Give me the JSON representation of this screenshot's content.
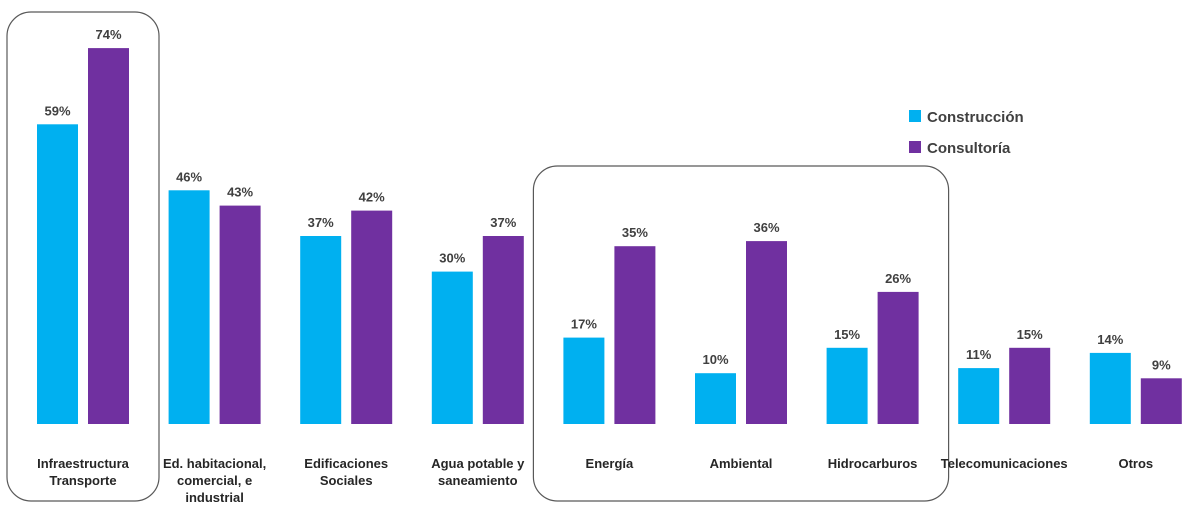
{
  "chart_data": {
    "type": "bar",
    "categories": [
      "Infraestructura Transporte",
      "Ed.  habitacional, comercial, e industrial",
      "Edificaciones Sociales",
      "Agua potable y saneamiento",
      "Energía",
      "Ambiental",
      "Hidrocarburos",
      "Telecomunicaciones",
      "Otros"
    ],
    "category_lines": [
      [
        "Infraestructura",
        "Transporte"
      ],
      [
        "Ed.  habitacional,",
        "comercial, e",
        "industrial"
      ],
      [
        "Edificaciones",
        "Sociales"
      ],
      [
        "Agua potable y",
        "saneamiento"
      ],
      [
        "Energía"
      ],
      [
        "Ambiental"
      ],
      [
        "Hidrocarburos"
      ],
      [
        "Telecomunicaciones"
      ],
      [
        "Otros"
      ]
    ],
    "series": [
      {
        "name": "Construcción",
        "color": "#00B0F0",
        "values": [
          59,
          46,
          37,
          30,
          17,
          10,
          15,
          11,
          14
        ]
      },
      {
        "name": "Consultoría",
        "color": "#7030A0",
        "values": [
          74,
          43,
          42,
          37,
          35,
          36,
          26,
          15,
          9
        ]
      }
    ],
    "value_suffix": "%",
    "ylim": [
      0,
      100
    ],
    "title": "",
    "xlabel": "",
    "ylabel": "",
    "grid": false,
    "legend_position": "top-right",
    "highlight_groups": [
      {
        "categories": [
          "Infraestructura Transporte"
        ]
      },
      {
        "categories": [
          "Energía",
          "Ambiental",
          "Hidrocarburos"
        ]
      }
    ]
  }
}
